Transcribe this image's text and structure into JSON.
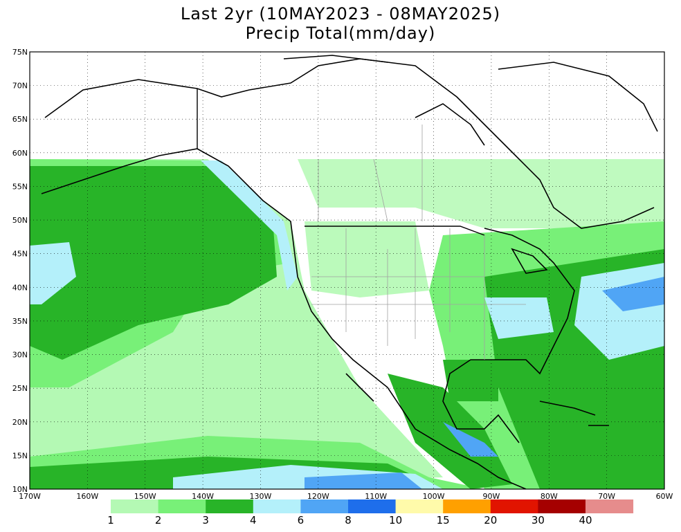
{
  "title": {
    "line1": "Last 2yr (10MAY2023 - 08MAY2025)",
    "line2": "Precip Total(mm/day)"
  },
  "axes": {
    "lat_labels": [
      "75N",
      "70N",
      "65N",
      "60N",
      "55N",
      "50N",
      "45N",
      "40N",
      "35N",
      "30N",
      "25N",
      "20N",
      "15N",
      "10N"
    ],
    "lon_labels": [
      "170W",
      "160W",
      "150W",
      "140W",
      "130W",
      "120W",
      "110W",
      "100W",
      "90W",
      "80W",
      "70W",
      "60W"
    ],
    "lon_range": [
      -170,
      -60
    ],
    "lat_range": [
      10,
      75
    ],
    "grid": true
  },
  "legend": {
    "labels": [
      "1",
      "2",
      "3",
      "4",
      "6",
      "8",
      "10",
      "15",
      "20",
      "30",
      "40"
    ],
    "colors": [
      "#b4f9b4",
      "#78f078",
      "#28b428",
      "#b4f0fa",
      "#50a5f5",
      "#1e6eeb",
      "#fffaaa",
      "#ffa000",
      "#e11400",
      "#a50000",
      "#e68c8c"
    ]
  },
  "colors": {
    "ocean_light": "#ffffff",
    "land": "#ffffff",
    "coast": "#000000",
    "borders": "#a0a0a0"
  }
}
